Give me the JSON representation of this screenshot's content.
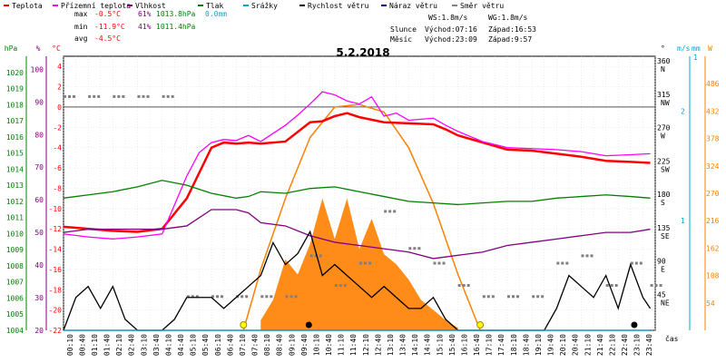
{
  "legend": [
    {
      "label": "Teplota",
      "color": "#ff0000"
    },
    {
      "label": "Přízemní teplota",
      "color": "#ff00ff"
    },
    {
      "label": "Vlhkost",
      "color": "#800080"
    },
    {
      "label": "Tlak",
      "color": "#008000"
    },
    {
      "label": "Srážky",
      "color": "#00aacc"
    },
    {
      "label": "Rychlost větru",
      "color": "#000000"
    },
    {
      "label": "Náraz větru",
      "color": "#000080"
    },
    {
      "label": "Směr větru",
      "color": "#808080"
    }
  ],
  "stats": {
    "max": {
      "label": "max",
      "temp": "-0.5°C",
      "hum": "61%",
      "press": "1013.8hPa",
      "rain": "0.0mm"
    },
    "min": {
      "label": "min",
      "temp": "-11.9°C",
      "hum": "41%",
      "press": "1011.4hPa"
    },
    "avg": {
      "label": "avg",
      "temp": "-4.5°C"
    }
  },
  "info": {
    "ws": "WS:1.8m/s",
    "wg": "WG:1.8m/s",
    "sun_label": "Slunce",
    "sun_rise": "Východ:07:16",
    "sun_set": "Západ:16:53",
    "moon_label": "Měsíc",
    "moon_rise": "Východ:23:09",
    "moon_set": "Západ:9:57"
  },
  "chart_data": {
    "type": "line",
    "title": "5.2.2018",
    "xlabel": "čas",
    "x_ticks": [
      "00:10",
      "00:40",
      "01:10",
      "01:40",
      "02:10",
      "02:40",
      "03:10",
      "03:40",
      "04:10",
      "04:40",
      "05:10",
      "05:40",
      "06:10",
      "06:40",
      "07:10",
      "07:40",
      "08:10",
      "08:40",
      "09:10",
      "09:40",
      "10:10",
      "10:40",
      "11:10",
      "11:40",
      "12:10",
      "12:40",
      "13:10",
      "13:40",
      "14:10",
      "14:40",
      "15:10",
      "15:40",
      "16:10",
      "16:40",
      "17:10",
      "17:40",
      "18:10",
      "18:40",
      "19:10",
      "19:40",
      "20:10",
      "20:40",
      "21:10",
      "21:40",
      "22:10",
      "22:40",
      "23:10",
      "23:40"
    ],
    "axes": {
      "hpa": {
        "unit": "hPa",
        "color": "#008000",
        "ticks": [
          "1020",
          "1019",
          "1018",
          "1017",
          "1016",
          "1015",
          "1014",
          "1013",
          "1012",
          "1011",
          "1010",
          "1009",
          "1008",
          "1007",
          "1006",
          "1005",
          "1004"
        ],
        "range": [
          1004,
          1021
        ]
      },
      "pct": {
        "unit": "%",
        "color": "#800080",
        "ticks": [
          "100",
          "90",
          "80",
          "70",
          "60",
          "50",
          "40",
          "30",
          "20"
        ],
        "range": [
          20,
          104
        ]
      },
      "temp": {
        "unit": "°C",
        "color": "#ff0000",
        "ticks": [
          "4",
          "2",
          "0",
          "-2",
          "-4",
          "-6",
          "-8",
          "-10",
          "-12",
          "-14",
          "-16",
          "-18",
          "-20",
          "-22"
        ],
        "range": [
          -22,
          5
        ]
      },
      "dir": {
        "unit": "°",
        "color": "#000000",
        "ticks": [
          "360 N",
          "315 NW",
          "270 W",
          "225 SW",
          "180 S",
          "135 SE",
          "90 E",
          "45 NE"
        ],
        "range": [
          0,
          370
        ]
      },
      "ms": {
        "unit": "m/s",
        "color": "#00aacc",
        "ticks": [
          "2",
          "1"
        ],
        "range": [
          0,
          2.5
        ]
      },
      "mm": {
        "unit": "mm",
        "color": "#00aacc",
        "ticks": [
          "1"
        ],
        "range": [
          0,
          1
        ]
      },
      "wm2": {
        "unit": "W",
        "color": "#ff8000",
        "ticks": [
          "486",
          "432",
          "378",
          "324",
          "270",
          "216",
          "162",
          "108",
          "54"
        ],
        "range": [
          0,
          540
        ]
      }
    },
    "series": [
      {
        "name": "Teplota",
        "axis": "temp",
        "color": "#ff0000",
        "x": [
          0,
          1,
          2,
          3,
          4,
          5,
          5.5,
          6,
          6.5,
          7,
          7.5,
          8,
          9,
          10,
          10.5,
          11,
          11.5,
          12,
          13,
          14,
          15,
          15.5,
          16,
          17,
          18,
          19,
          20,
          21,
          22,
          23,
          23.8
        ],
        "y": [
          -11.8,
          -12,
          -12.2,
          -12.3,
          -12,
          -9,
          -6.5,
          -4,
          -3.5,
          -3.6,
          -3.5,
          -3.6,
          -3.4,
          -1.5,
          -1.4,
          -0.9,
          -0.6,
          -1,
          -1.5,
          -1.6,
          -1.7,
          -2.2,
          -2.8,
          -3.5,
          -4.2,
          -4.3,
          -4.6,
          -4.9,
          -5.3,
          -5.4,
          -5.5
        ]
      },
      {
        "name": "Přízemní teplota",
        "axis": "temp",
        "color": "#ff00ff",
        "x": [
          0,
          1,
          2,
          3,
          4,
          5,
          5.5,
          6,
          6.5,
          7,
          7.5,
          8,
          9,
          9.5,
          10,
          10.5,
          11,
          11.5,
          12,
          12.5,
          13,
          13.5,
          14,
          15,
          15.5,
          16,
          17,
          18,
          19,
          20,
          21,
          22,
          23,
          23.8
        ],
        "y": [
          -12.5,
          -12.8,
          -13,
          -12.8,
          -12.5,
          -6.8,
          -4.5,
          -3.5,
          -3.2,
          -3.3,
          -2.8,
          -3.4,
          -1.8,
          -0.8,
          0.3,
          1.5,
          1.2,
          0.6,
          0.3,
          1,
          -0.9,
          -0.6,
          -1.3,
          -1.1,
          -1.8,
          -2.4,
          -3.4,
          -4,
          -4.1,
          -4.2,
          -4.4,
          -4.8,
          -4.7,
          -4.6
        ]
      },
      {
        "name": "Vlhkost",
        "axis": "pct",
        "color": "#800080",
        "x": [
          0,
          1,
          2,
          3,
          4,
          5,
          6,
          7,
          7.5,
          8,
          9,
          10,
          11,
          12,
          13,
          14,
          15,
          16,
          17,
          18,
          19,
          20,
          21,
          22,
          23,
          23.8
        ],
        "y": [
          50,
          51,
          51,
          51,
          51,
          52,
          57,
          57,
          56,
          53,
          52,
          49,
          47,
          46,
          45,
          44,
          42,
          43,
          44,
          46,
          47,
          48,
          49,
          50,
          50,
          51
        ]
      },
      {
        "name": "Tlak",
        "axis": "hpa",
        "color": "#008000",
        "x": [
          0,
          1,
          2,
          3,
          4,
          5,
          6,
          7,
          7.5,
          8,
          9,
          10,
          11,
          12,
          13,
          14,
          15,
          16,
          17,
          18,
          19,
          20,
          21,
          22,
          23,
          23.8
        ],
        "y": [
          1012.2,
          1012.4,
          1012.6,
          1012.9,
          1013.3,
          1013,
          1012.5,
          1012.2,
          1012.3,
          1012.6,
          1012.5,
          1012.8,
          1012.9,
          1012.6,
          1012.3,
          1012,
          1011.9,
          1011.8,
          1011.9,
          1012,
          1012,
          1012.2,
          1012.3,
          1012.4,
          1012.3,
          1012.2
        ]
      },
      {
        "name": "Rychlost větru",
        "axis": "ms",
        "color": "#000000",
        "x": [
          0,
          0.5,
          1,
          1.5,
          2,
          2.5,
          3,
          3.5,
          4,
          4.5,
          5,
          5.5,
          6,
          6.5,
          7,
          7.5,
          8,
          8.5,
          9,
          9.5,
          10,
          10.5,
          11,
          11.5,
          12,
          12.5,
          13,
          13.5,
          14,
          14.5,
          15,
          15.5,
          16,
          16.5,
          17,
          17.5,
          18,
          18.5,
          19,
          19.5,
          20,
          20.5,
          21,
          21.5,
          22,
          22.5,
          23,
          23.5,
          23.8
        ],
        "y": [
          0,
          0.3,
          0.4,
          0.2,
          0.4,
          0.1,
          0,
          0,
          0,
          0.1,
          0.3,
          0.3,
          0.3,
          0.2,
          0.3,
          0.4,
          0.5,
          0.8,
          0.6,
          0.7,
          0.9,
          0.5,
          0.6,
          0.5,
          0.4,
          0.3,
          0.4,
          0.3,
          0.2,
          0.2,
          0.3,
          0.1,
          0,
          0,
          0,
          0,
          0,
          0,
          0,
          0,
          0.2,
          0.5,
          0.4,
          0.3,
          0.5,
          0.2,
          0.6,
          0.3,
          0.2
        ]
      },
      {
        "name": "Náraz větru",
        "axis": "ms",
        "color": "#000080",
        "x": [
          0,
          23.8
        ],
        "y": [
          0,
          0
        ]
      },
      {
        "name": "Srážky",
        "axis": "mm",
        "color": "#00aacc",
        "x": [
          0,
          23.8
        ],
        "y": [
          0,
          0
        ]
      }
    ],
    "solar": {
      "axis": "wm2",
      "color": "#ff8000",
      "x": [
        8,
        8.5,
        9,
        9.5,
        10,
        10.5,
        11,
        11.5,
        12,
        12.5,
        13,
        13.5,
        14,
        14.5,
        15,
        15.5,
        16
      ],
      "y": [
        20,
        60,
        140,
        110,
        170,
        260,
        180,
        260,
        160,
        220,
        150,
        130,
        100,
        60,
        40,
        20,
        5
      ]
    },
    "sun_curve": {
      "axis": "wm2",
      "color": "#ff8000",
      "x": [
        7.3,
        8,
        9,
        10,
        11,
        12,
        13,
        14,
        15,
        16,
        16.9
      ],
      "y": [
        0,
        120,
        260,
        380,
        440,
        445,
        430,
        360,
        250,
        110,
        0
      ]
    },
    "wind_dir": {
      "axis": "dir",
      "color": "#808080",
      "x": [
        0,
        1,
        2,
        3,
        4,
        5,
        6,
        7,
        8,
        9,
        10,
        11,
        12,
        13,
        14,
        15,
        16,
        17,
        18,
        19,
        20,
        21,
        22,
        23,
        23.8
      ],
      "y": [
        315,
        315,
        315,
        315,
        315,
        45,
        45,
        45,
        45,
        45,
        100,
        60,
        90,
        160,
        110,
        90,
        60,
        45,
        45,
        45,
        90,
        100,
        60,
        90,
        60
      ]
    }
  }
}
